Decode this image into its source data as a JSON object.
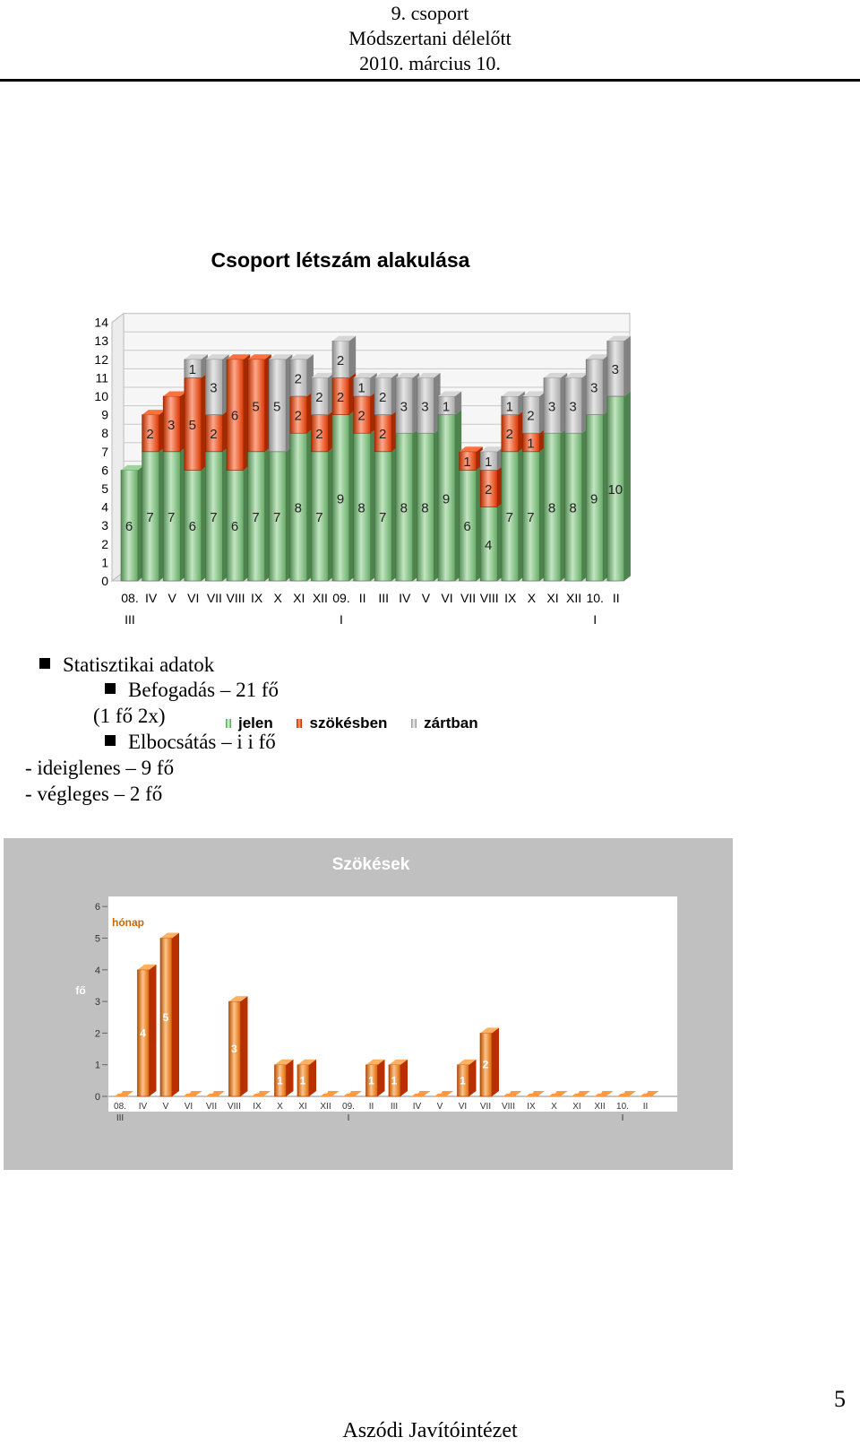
{
  "header": {
    "line1": "9. csoport",
    "line2": "Módszertani délelőtt",
    "line3": "2010. március 10."
  },
  "stats": {
    "main": "Statisztikai adatok",
    "intake": "Befogadás – 21 fő",
    "intake_note": "(1 fő 2x)",
    "release": "Elbocsátás – i i fő",
    "temporary": "- ideiglenes – 9 fő",
    "final": "- végleges – 2 fő"
  },
  "legend": {
    "items": [
      "jelen",
      "szökésben",
      "zártban"
    ]
  },
  "colors": {
    "green": "#78c878",
    "orange": "#ff4000",
    "gray": "#c8c8c8",
    "chart2_bg": "#c0c0c0"
  },
  "footer": {
    "text": "Aszódi Javítóintézet",
    "page": "5"
  },
  "chart_data": [
    {
      "type": "bar",
      "stacked": true,
      "title": "Csoport létszám alakulása",
      "categories": [
        "08. III",
        "IV",
        "V",
        "VI",
        "VII",
        "VIII",
        "IX",
        "X",
        "XI",
        "XII",
        "09. I",
        "II",
        "III",
        "IV",
        "V",
        "VI",
        "VII",
        "VIII",
        "IX",
        "X",
        "XI",
        "XII",
        "10. I",
        "II"
      ],
      "category_lines": [
        [
          "08.",
          "III"
        ],
        [
          "IV",
          ""
        ],
        [
          "V",
          ""
        ],
        [
          "VI",
          ""
        ],
        [
          "VII",
          ""
        ],
        [
          "VIII",
          ""
        ],
        [
          "IX",
          ""
        ],
        [
          "X",
          ""
        ],
        [
          "XI",
          ""
        ],
        [
          "XII",
          ""
        ],
        [
          "09.",
          "I"
        ],
        [
          "II",
          ""
        ],
        [
          "III",
          ""
        ],
        [
          "IV",
          ""
        ],
        [
          "V",
          ""
        ],
        [
          "VI",
          ""
        ],
        [
          "VII",
          ""
        ],
        [
          "VIII",
          ""
        ],
        [
          "IX",
          ""
        ],
        [
          "X",
          ""
        ],
        [
          "XI",
          ""
        ],
        [
          "XII",
          ""
        ],
        [
          "10.",
          "I"
        ],
        [
          "II",
          ""
        ]
      ],
      "series": [
        {
          "name": "jelen",
          "values": [
            6,
            7,
            7,
            6,
            7,
            6,
            7,
            7,
            8,
            7,
            9,
            8,
            7,
            8,
            8,
            9,
            6,
            4,
            7,
            7,
            8,
            8,
            9,
            10
          ]
        },
        {
          "name": "szökésben",
          "values": [
            0,
            2,
            3,
            5,
            2,
            6,
            5,
            0,
            2,
            2,
            2,
            2,
            2,
            0,
            0,
            0,
            1,
            2,
            2,
            1,
            0,
            0,
            0,
            0
          ]
        },
        {
          "name": "zártban",
          "values": [
            0,
            0,
            0,
            1,
            3,
            0,
            0,
            5,
            2,
            2,
            2,
            1,
            2,
            3,
            3,
            1,
            0,
            1,
            1,
            2,
            3,
            3,
            3,
            3
          ]
        }
      ],
      "ylim": [
        0,
        14
      ],
      "yticks": [
        0,
        1,
        2,
        3,
        4,
        5,
        6,
        7,
        8,
        9,
        10,
        11,
        12,
        13,
        14
      ],
      "grid": true,
      "legend_position": "bottom"
    },
    {
      "type": "bar",
      "title": "Szökések",
      "xlabel": "hónap",
      "ylabel": "fő",
      "categories": [
        "08. III",
        "IV",
        "V",
        "VI",
        "VII",
        "VIII",
        "IX",
        "X",
        "XI",
        "XII",
        "09. I",
        "II",
        "III",
        "IV",
        "V",
        "VI",
        "VII",
        "VIII",
        "IX",
        "X",
        "XI",
        "XII",
        "10. I",
        "II"
      ],
      "category_lines": [
        [
          "08.",
          "III"
        ],
        [
          "IV",
          ""
        ],
        [
          "V",
          ""
        ],
        [
          "VI",
          ""
        ],
        [
          "VII",
          ""
        ],
        [
          "VIII",
          ""
        ],
        [
          "IX",
          ""
        ],
        [
          "X",
          ""
        ],
        [
          "XI",
          ""
        ],
        [
          "XII",
          ""
        ],
        [
          "09.",
          "I"
        ],
        [
          "II",
          ""
        ],
        [
          "III",
          ""
        ],
        [
          "IV",
          ""
        ],
        [
          "V",
          ""
        ],
        [
          "VI",
          ""
        ],
        [
          "VII",
          ""
        ],
        [
          "VIII",
          ""
        ],
        [
          "IX",
          ""
        ],
        [
          "X",
          ""
        ],
        [
          "XI",
          ""
        ],
        [
          "XII",
          ""
        ],
        [
          "10.",
          "I"
        ],
        [
          "II",
          ""
        ]
      ],
      "values": [
        0,
        4,
        5,
        0,
        0,
        3,
        0,
        1,
        1,
        0,
        0,
        1,
        1,
        0,
        0,
        1,
        2,
        0,
        0,
        0,
        0,
        0,
        0,
        0
      ],
      "ylim": [
        0,
        6
      ],
      "yticks": [
        0,
        1,
        2,
        3,
        4,
        5,
        6
      ],
      "grid": false
    }
  ]
}
